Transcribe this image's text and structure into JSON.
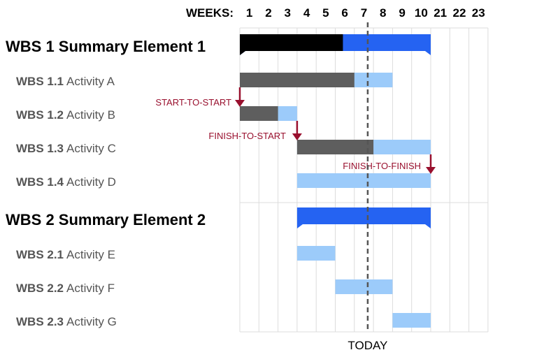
{
  "header": {
    "weeks_label": "WEEKS:"
  },
  "columns": [
    "1",
    "2",
    "3",
    "4",
    "5",
    "6",
    "7",
    "8",
    "9",
    "10",
    "21",
    "22",
    "23"
  ],
  "rows": [
    {
      "kind": "summary",
      "label": "WBS 1 Summary Element 1"
    },
    {
      "kind": "activity",
      "code": "WBS 1.1",
      "name": "Activity A"
    },
    {
      "kind": "activity",
      "code": "WBS 1.2",
      "name": "Activity B"
    },
    {
      "kind": "activity",
      "code": "WBS 1.3",
      "name": "Activity C"
    },
    {
      "kind": "activity",
      "code": "WBS 1.4",
      "name": "Activity D"
    },
    {
      "kind": "summary",
      "label": "WBS 2 Summary Element 2"
    },
    {
      "kind": "activity",
      "code": "WBS 2.1",
      "name": "Activity E"
    },
    {
      "kind": "activity",
      "code": "WBS 2.2",
      "name": "Activity F"
    },
    {
      "kind": "activity",
      "code": "WBS 2.3",
      "name": "Activity G"
    }
  ],
  "bars": [
    {
      "row": 0,
      "kind": "summary",
      "start": 1,
      "end": 10,
      "progress_end": 5.4
    },
    {
      "row": 1,
      "kind": "activity",
      "start": 1,
      "end": 8,
      "progress_end": 6.0
    },
    {
      "row": 2,
      "kind": "activity",
      "start": 1,
      "end": 3,
      "progress_end": 2.0
    },
    {
      "row": 3,
      "kind": "activity",
      "start": 4,
      "end": 10,
      "progress_end": 7.0
    },
    {
      "row": 4,
      "kind": "activity",
      "start": 4,
      "end": 10
    },
    {
      "row": 5,
      "kind": "summary",
      "start": 4,
      "end": 10
    },
    {
      "row": 6,
      "kind": "activity",
      "start": 4,
      "end": 5
    },
    {
      "row": 7,
      "kind": "activity",
      "start": 6,
      "end": 8
    },
    {
      "row": 8,
      "kind": "activity",
      "start": 9,
      "end": 10
    }
  ],
  "dependencies": [
    {
      "label": "START-TO-START",
      "type": "start-to-start",
      "from_row": 1,
      "to_row": 2
    },
    {
      "label": "FINISH-TO-START",
      "type": "finish-to-start",
      "from_row": 2,
      "to_row": 3
    },
    {
      "label": "FINISH-TO-FINISH",
      "type": "finish-to-finish",
      "from_row": 3,
      "to_row": 4
    }
  ],
  "today": {
    "label": "TODAY",
    "week": 7.7
  },
  "colors": {
    "summary_done": "#000000",
    "summary_todo": "#2563f2",
    "activity_done": "#5e5e5e",
    "activity_todo": "#9ccbfa",
    "dependency": "#99102e",
    "grid": "#dcdcdc",
    "today_line": "#555555"
  }
}
